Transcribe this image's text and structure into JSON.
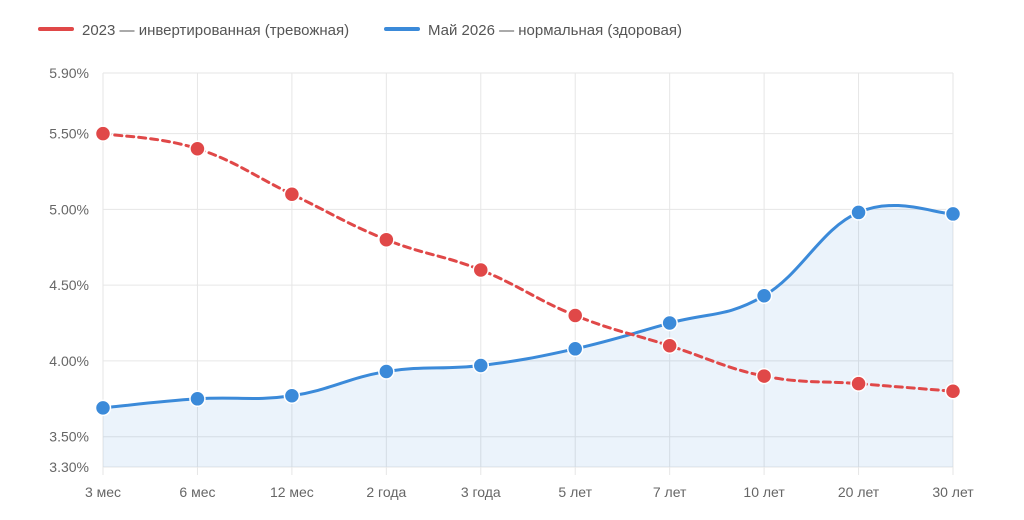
{
  "chart_data": {
    "type": "line",
    "categories": [
      "3 мес",
      "6 мес",
      "12 мес",
      "2 года",
      "3 года",
      "5 лет",
      "7 лет",
      "10 лет",
      "20 лет",
      "30 лет"
    ],
    "series": [
      {
        "name": "2023 — инвертированная (тревожная)",
        "color": "#e04848",
        "line_style": "dashed",
        "fill": false,
        "values": [
          5.5,
          5.4,
          5.1,
          4.8,
          4.6,
          4.3,
          4.1,
          3.9,
          3.85,
          3.8
        ]
      },
      {
        "name": "Май 2026 — нормальная (здоровая)",
        "color": "#3b8ad9",
        "line_style": "solid",
        "fill": true,
        "values": [
          3.69,
          3.75,
          3.77,
          3.93,
          3.97,
          4.08,
          4.25,
          4.43,
          4.98,
          4.97
        ]
      }
    ],
    "y_ticks": [
      "5.90%",
      "5.50%",
      "5.00%",
      "4.50%",
      "4.00%",
      "3.50%",
      "3.30%"
    ],
    "y_tick_values": [
      5.9,
      5.5,
      5.0,
      4.5,
      4.0,
      3.5,
      3.3
    ],
    "ylim": [
      3.3,
      5.9
    ],
    "grid": true,
    "legend_position": "top-left"
  }
}
